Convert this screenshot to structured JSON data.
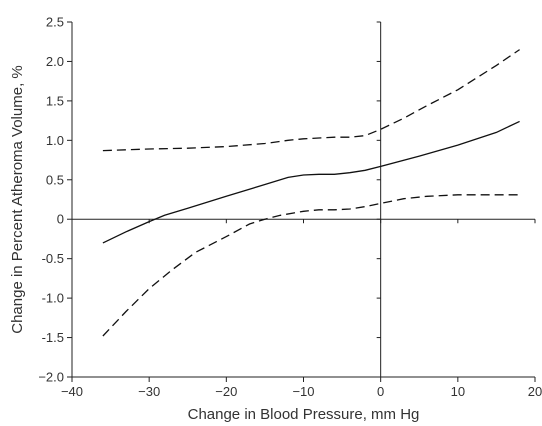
{
  "chart_data": {
    "type": "line",
    "xlabel": "Change in Blood Pressure, mm Hg",
    "ylabel": "Change in Percent Atheroma Volume, %",
    "xlim": [
      -40,
      20
    ],
    "ylim": [
      -2.0,
      2.5
    ],
    "x_ticks": [
      -40,
      -30,
      -20,
      -10,
      0,
      10,
      20
    ],
    "x_tick_labels": [
      "−40",
      "−30",
      "−20",
      "−10",
      "0",
      "10",
      "20"
    ],
    "y_ticks": [
      2.5,
      2.0,
      1.5,
      1.0,
      0.5,
      0,
      -0.5,
      -1.0,
      -1.5,
      -2.0
    ],
    "y_tick_labels": [
      "2.5",
      "2.0",
      "1.5",
      "1.0",
      "0.5",
      "0",
      "-0.5",
      "-1.0",
      "-1.5",
      "−2.0"
    ],
    "series": [
      {
        "style": "solid",
        "x": [
          -36,
          -33,
          -30,
          -28,
          -25,
          -20,
          -15,
          -12,
          -10,
          -8,
          -6,
          -4,
          -2,
          0,
          5,
          10,
          15,
          18
        ],
        "y": [
          -0.3,
          -0.16,
          -0.03,
          0.05,
          0.14,
          0.29,
          0.44,
          0.53,
          0.56,
          0.57,
          0.57,
          0.59,
          0.62,
          0.67,
          0.8,
          0.94,
          1.1,
          1.24
        ]
      },
      {
        "style": "dashed",
        "x": [
          -36,
          -30,
          -25,
          -20,
          -15,
          -12,
          -10,
          -8,
          -6,
          -4,
          -2,
          0,
          3,
          6,
          10,
          15,
          18
        ],
        "y": [
          0.87,
          0.89,
          0.9,
          0.92,
          0.96,
          1.0,
          1.02,
          1.03,
          1.04,
          1.04,
          1.06,
          1.14,
          1.28,
          1.44,
          1.64,
          1.95,
          2.15
        ]
      },
      {
        "style": "dashed",
        "x": [
          -36,
          -33,
          -30,
          -27,
          -24,
          -20,
          -17,
          -15,
          -13,
          -10,
          -8,
          -6,
          -4,
          -2,
          0,
          3,
          6,
          10,
          15,
          18
        ],
        "y": [
          -1.48,
          -1.17,
          -0.88,
          -0.64,
          -0.42,
          -0.22,
          -0.06,
          0.0,
          0.05,
          0.1,
          0.12,
          0.12,
          0.13,
          0.16,
          0.2,
          0.26,
          0.29,
          0.31,
          0.31,
          0.31
        ]
      }
    ]
  }
}
